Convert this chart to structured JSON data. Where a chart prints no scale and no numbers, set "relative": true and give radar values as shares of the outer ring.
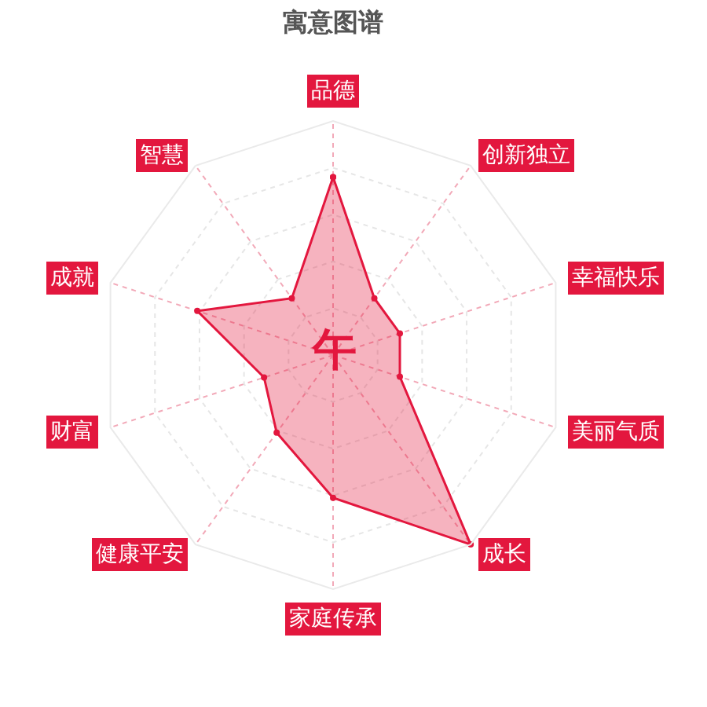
{
  "chart_data": {
    "type": "radar",
    "title": "寓意图谱",
    "categories": [
      "品德",
      "创新独立",
      "幸福快乐",
      "美丽气质",
      "成长",
      "家庭传承",
      "健康平安",
      "财富",
      "成就",
      "智慧"
    ],
    "relative": true,
    "series": [
      {
        "color": "#e3173e",
        "values": [
          0.76,
          0.3,
          0.3,
          0.3,
          1,
          0.61,
          0.41,
          0.31,
          0.61,
          0.3
        ]
      }
    ],
    "grid": true,
    "marker": "circle",
    "annotations": [
      "午"
    ]
  }
}
